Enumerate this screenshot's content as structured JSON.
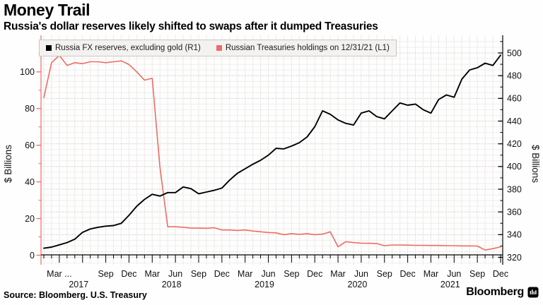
{
  "header": {
    "title": "Money Trail",
    "subtitle": "Russia's dollar reserves likely shifted to swaps after it dumped Treasuries"
  },
  "legend": {
    "items": [
      {
        "label": "Russia FX reserves, excluding gold (R1)",
        "color": "#000000"
      },
      {
        "label": "Russian Treasuries holdings on 12/31/21 (L1)",
        "color": "#ee6c62"
      }
    ]
  },
  "footer": {
    "source": "Source: Bloomberg. U.S. Treasury",
    "brand": "Bloomberg"
  },
  "chart_data": {
    "type": "line",
    "x": {
      "unit": "month",
      "start": "2017-01",
      "end": "2021-12",
      "quarter_tick_labels": [
        {
          "i": 2,
          "label": "Mar ..."
        },
        {
          "i": 8,
          "label": "Sep"
        },
        {
          "i": 11,
          "label": "Dec"
        },
        {
          "i": 14,
          "label": "Mar"
        },
        {
          "i": 17,
          "label": "Jun"
        },
        {
          "i": 20,
          "label": "Sep"
        },
        {
          "i": 23,
          "label": "Dec"
        },
        {
          "i": 26,
          "label": "Mar"
        },
        {
          "i": 29,
          "label": "Jun"
        },
        {
          "i": 32,
          "label": "Sep"
        },
        {
          "i": 35,
          "label": "Dec"
        },
        {
          "i": 38,
          "label": "Mar"
        },
        {
          "i": 41,
          "label": "Jun"
        },
        {
          "i": 44,
          "label": "Sep"
        },
        {
          "i": 47,
          "label": "Dec"
        },
        {
          "i": 50,
          "label": "Mar"
        },
        {
          "i": 53,
          "label": "Jun"
        },
        {
          "i": 56,
          "label": "Sep"
        },
        {
          "i": 59,
          "label": "Dec"
        }
      ],
      "year_labels": [
        {
          "i": 4.5,
          "label": "2017"
        },
        {
          "i": 16.5,
          "label": "2018"
        },
        {
          "i": 28.5,
          "label": "2019"
        },
        {
          "i": 40.5,
          "label": "2020"
        },
        {
          "i": 52.5,
          "label": "2021"
        }
      ]
    },
    "left_axis": {
      "title": "$ Billions",
      "color": "#ee6c62",
      "tick_labels": [
        0,
        20,
        40,
        60,
        80,
        100
      ],
      "minor_ticks": [
        10,
        30,
        50,
        70,
        90,
        110
      ]
    },
    "right_axis": {
      "title": "$ Billions",
      "color": "#000000",
      "tick_labels": [
        320,
        340,
        360,
        380,
        400,
        420,
        440,
        460,
        480,
        500
      ],
      "minor_ticks": [
        330,
        350,
        370,
        390,
        410,
        430,
        450,
        470,
        490,
        510
      ]
    },
    "grid": {
      "h_minor_step_right_units": 5,
      "h_major_dotted_at_right_ticks": true,
      "v_lines": "monthly"
    },
    "series": [
      {
        "name": "Russia FX reserves, excluding gold (R1)",
        "axis": "right",
        "color": "#000000",
        "values": [
          328,
          329,
          331,
          333,
          336,
          342,
          345,
          346.5,
          347.5,
          348,
          350,
          357,
          365,
          371,
          375.5,
          374,
          377,
          377,
          382,
          380.5,
          376,
          377.5,
          379,
          381,
          388,
          394,
          398,
          402,
          405.5,
          410,
          416,
          415.5,
          418,
          421,
          426,
          435,
          449,
          446,
          441,
          438,
          436.5,
          447,
          449,
          444,
          442,
          449,
          456,
          454,
          455,
          450,
          447,
          459,
          463,
          461,
          477,
          485,
          487,
          491,
          489,
          498
        ]
      },
      {
        "name": "Russian Treasuries holdings on 12/31/21 (L1)",
        "axis": "left",
        "color": "#ee6c62",
        "values": [
          86,
          105,
          109,
          103.5,
          105,
          104.5,
          105.5,
          105.5,
          105,
          105.5,
          106,
          104,
          100,
          95.5,
          96.5,
          48,
          15.5,
          15.5,
          15.3,
          14.8,
          14.8,
          14.7,
          15,
          13.8,
          13.8,
          13.5,
          13.8,
          13.2,
          12.8,
          12.4,
          12.2,
          11.2,
          11.8,
          11.4,
          11.8,
          11.2,
          11.5,
          12.8,
          4.6,
          7.4,
          6.9,
          6.6,
          6.5,
          6.4,
          5.2,
          5.6,
          5.6,
          5.5,
          5.4,
          5.4,
          5.3,
          5.3,
          5.2,
          5.2,
          5.1,
          5.1,
          5.0,
          2.8,
          3.6,
          4.6
        ]
      }
    ]
  }
}
